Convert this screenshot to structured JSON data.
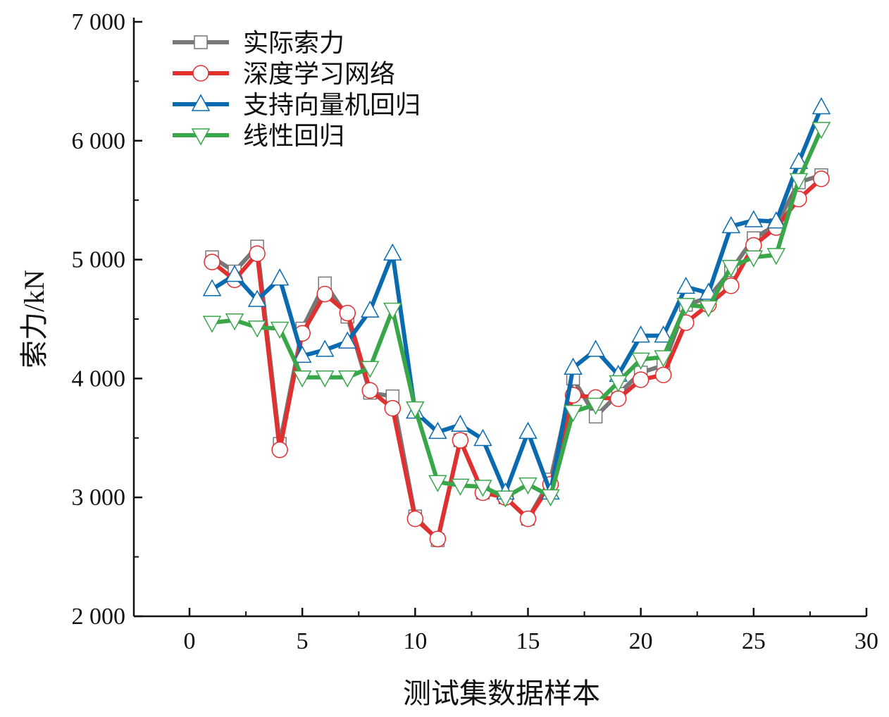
{
  "chart_data": {
    "type": "line",
    "title": "",
    "xlabel": "测试集数据样本",
    "ylabel": "索力/kN",
    "xlim": [
      -2.5,
      30
    ],
    "ylim": [
      2000,
      7000
    ],
    "xticks": [
      0,
      5,
      10,
      15,
      20,
      25,
      30
    ],
    "xtick_labels": [
      "0",
      "5",
      "10",
      "15",
      "20",
      "25",
      "30"
    ],
    "yticks": [
      2000,
      3000,
      4000,
      5000,
      6000,
      7000
    ],
    "ytick_labels": [
      "2 000",
      "3 000",
      "4 000",
      "5 000",
      "6 000",
      "7 000"
    ],
    "legend_position": "top-left",
    "x": [
      1,
      2,
      3,
      4,
      5,
      6,
      7,
      8,
      9,
      10,
      11,
      12,
      13,
      14,
      15,
      16,
      17,
      18,
      19,
      20,
      21,
      22,
      23,
      24,
      25,
      26,
      27,
      28
    ],
    "series": [
      {
        "name": "实际索力",
        "color": "#777777",
        "marker": "square",
        "values": [
          5020,
          4900,
          5110,
          3450,
          4420,
          4800,
          4520,
          3880,
          3850,
          2840,
          2640,
          3480,
          3040,
          3000,
          2820,
          3150,
          4000,
          3680,
          3870,
          4050,
          4110,
          4620,
          4680,
          4910,
          5180,
          5290,
          5650,
          5710
        ]
      },
      {
        "name": "深度学习网络",
        "color": "#e03030",
        "marker": "circle",
        "values": [
          4980,
          4830,
          5050,
          3400,
          4380,
          4710,
          4550,
          3900,
          3750,
          2820,
          2650,
          3480,
          3040,
          3000,
          2820,
          3110,
          3860,
          3840,
          3830,
          3990,
          4030,
          4470,
          4620,
          4780,
          5120,
          5270,
          5510,
          5680
        ]
      },
      {
        "name": "支持向量机回归",
        "color": "#0a6aaf",
        "marker": "triangle-up",
        "values": [
          4750,
          4870,
          4660,
          4840,
          4190,
          4240,
          4310,
          4570,
          5050,
          3720,
          3550,
          3610,
          3490,
          3040,
          3550,
          3040,
          4090,
          4240,
          4030,
          4360,
          4360,
          4770,
          4720,
          5280,
          5330,
          5320,
          5820,
          6280
        ]
      },
      {
        "name": "线性回归",
        "color": "#3aa64a",
        "marker": "triangle-down",
        "values": [
          4470,
          4490,
          4430,
          4420,
          4010,
          4010,
          4010,
          4090,
          4580,
          3750,
          3130,
          3100,
          3090,
          3000,
          3110,
          3010,
          3720,
          3780,
          3970,
          4160,
          4180,
          4620,
          4600,
          4940,
          5020,
          5040,
          5670,
          6100
        ]
      }
    ]
  }
}
